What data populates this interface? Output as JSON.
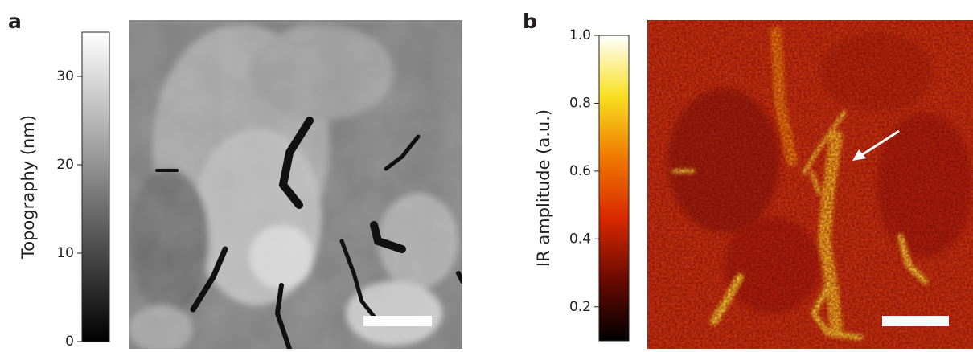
{
  "panels": [
    {
      "label": "a",
      "colorbar": {
        "label": "Topography (nm)",
        "lim": [
          0,
          35
        ],
        "ticks": [
          0,
          10,
          20,
          30
        ],
        "colors": [
          "#000000",
          "#404040",
          "#808080",
          "#c0c0c0",
          "#ffffff"
        ]
      }
    },
    {
      "label": "b",
      "colorbar": {
        "label": "IR amplitude (a.u.)",
        "lim": [
          0.1,
          1.0
        ],
        "ticks": [
          0.2,
          0.4,
          0.6,
          0.8,
          {
            "value": 1,
            "label": "1.0"
          }
        ],
        "colors": [
          "#000000",
          "#6a0a00",
          "#d82800",
          "#f07800",
          "#f8e020",
          "#ffffff"
        ]
      }
    }
  ]
}
